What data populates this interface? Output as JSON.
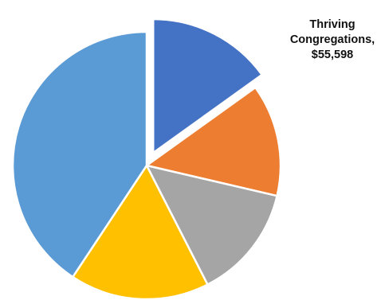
{
  "chart_data": {
    "type": "pie",
    "title": "",
    "slices": [
      {
        "label": "Thriving Congregations",
        "value": 55598,
        "color": "#4472C4",
        "exploded": true,
        "labeled": true
      },
      {
        "label": "",
        "value": 50000,
        "color": "#ED7D31",
        "exploded": false,
        "labeled": false
      },
      {
        "label": "",
        "value": 51000,
        "color": "#A5A5A5",
        "exploded": false,
        "labeled": false
      },
      {
        "label": "",
        "value": 62000,
        "color": "#FFC000",
        "exploded": false,
        "labeled": false
      },
      {
        "label": "",
        "value": 150000,
        "color": "#5B9BD5",
        "exploded": false,
        "labeled": false
      }
    ],
    "start_angle_deg": 0,
    "direction": "clockwise",
    "legend": "none"
  },
  "callout": {
    "text": "Thriving\nCongregations,\n$55,598"
  }
}
